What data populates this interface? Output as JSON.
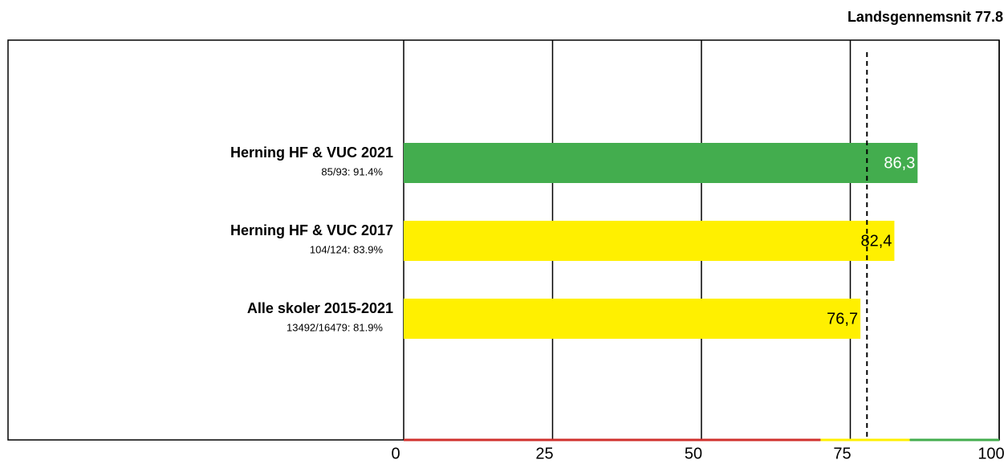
{
  "chart_data": {
    "type": "hbar",
    "categories": [
      "Herning HF & VUC 2021",
      "Herning HF & VUC 2017",
      "Alle skoler 2015-2021"
    ],
    "sublabels": [
      "85/93: 91.4%",
      "104/124: 83.9%",
      "13492/16479: 81.9%"
    ],
    "values": [
      86.3,
      82.4,
      76.7
    ],
    "value_labels": [
      "86,3",
      "82,4",
      "76,7"
    ],
    "colors": [
      "#43ad4e",
      "#fff000",
      "#fff000"
    ],
    "value_label_colors": [
      "#ffffff",
      "#000000",
      "#000000"
    ],
    "xlim": [
      0,
      100
    ],
    "xticks": [
      0,
      25,
      50,
      75,
      100
    ],
    "grid": true,
    "average": {
      "label": "Landsgennemsnit 77.8",
      "value": 77.8
    },
    "bands": [
      {
        "from": 0,
        "to": 70,
        "color": "#d0312d"
      },
      {
        "from": 70,
        "to": 85,
        "color": "#fff000"
      },
      {
        "from": 85,
        "to": 100,
        "color": "#43ad4e"
      }
    ]
  }
}
